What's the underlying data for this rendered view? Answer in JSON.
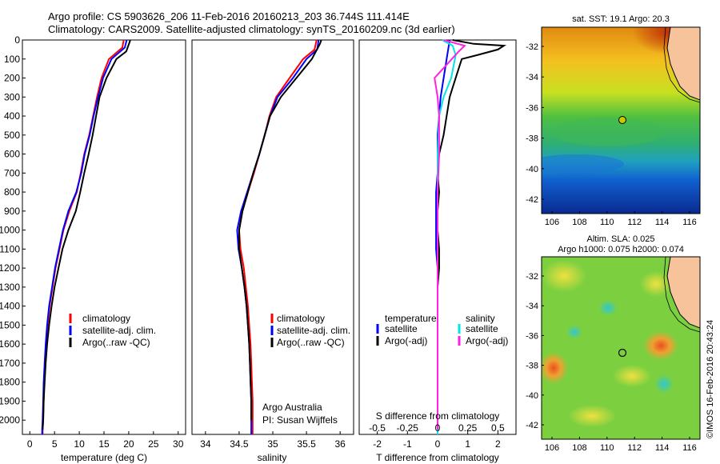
{
  "header": {
    "line1": "Argo profile: CS 5903626_206 11-Feb-2016 20160213_203 36.744S 111.414E",
    "line2": "Climatology: CARS2009. Satellite-adjusted climatology: synTS_20160209.nc (3d earlier)"
  },
  "colors": {
    "clim": "#ff0000",
    "sat": "#0000ff",
    "argo": "#000000",
    "sal_sat": "#00e5e5",
    "sal_argo": "#ff20e0"
  },
  "depth_axis": {
    "ylim": [
      2075,
      0
    ],
    "ticks": [
      0,
      100,
      200,
      300,
      400,
      500,
      600,
      700,
      800,
      900,
      1000,
      1100,
      1200,
      1300,
      1400,
      1500,
      1600,
      1700,
      1800,
      1900,
      2000
    ]
  },
  "panels": {
    "temperature": {
      "xlabel": "temperature (deg C)",
      "legend": [
        "climatology",
        "satellite-adj. clim.",
        "Argo(..raw -QC)"
      ]
    },
    "salinity": {
      "xlabel": "salinity",
      "legend": [
        "climatology",
        "satellite-adj. clim.",
        "Argo(..raw -QC)"
      ],
      "note1": "Argo Australia",
      "note2": "PI: Susan Wijffels"
    },
    "difference": {
      "xlabel": "T difference from climatology",
      "toplabel": "S difference from climatology",
      "legend_head_t": "temperature",
      "legend_head_s": "salinity",
      "legend": [
        "satellite",
        "Argo(-adj)",
        "satellite",
        "Argo(-adj)"
      ]
    }
  },
  "chart_data": [
    {
      "type": "line",
      "xlabel": "temperature (deg C)",
      "ylabel": "",
      "xlim": [
        -1.5,
        31.5
      ],
      "xticks": [
        0,
        5,
        10,
        15,
        20,
        25,
        30
      ],
      "ylim": [
        2075,
        0
      ],
      "series": [
        {
          "name": "climatology",
          "x": [
            19.0,
            18.7,
            16.0,
            14.5,
            13.6,
            12.8,
            12.0,
            11.0,
            10.3,
            9.5,
            8.0,
            6.8,
            6.0,
            5.2,
            4.6,
            4.0,
            3.6,
            3.3,
            3.1,
            2.9,
            2.8,
            2.7,
            2.6,
            2.6
          ],
          "y": [
            0,
            40,
            100,
            200,
            300,
            400,
            500,
            600,
            700,
            800,
            900,
            1000,
            1100,
            1200,
            1300,
            1400,
            1500,
            1600,
            1700,
            1800,
            1900,
            2000,
            2050,
            2075
          ]
        },
        {
          "name": "satellite-adj. clim.",
          "x": [
            19.6,
            19.2,
            16.5,
            14.8,
            13.8,
            12.9,
            12.1,
            11.1,
            10.4,
            9.4,
            7.8,
            6.7,
            5.9,
            5.1,
            4.5,
            3.9,
            3.5,
            3.2,
            3.0,
            2.8,
            2.7,
            2.6,
            2.5,
            2.5
          ],
          "y": [
            0,
            40,
            100,
            200,
            300,
            400,
            500,
            600,
            700,
            800,
            900,
            1000,
            1100,
            1200,
            1300,
            1400,
            1500,
            1600,
            1700,
            1800,
            1900,
            2000,
            2050,
            2075
          ]
        },
        {
          "name": "Argo(..raw -QC)",
          "x": [
            20.3,
            20.2,
            19.5,
            17.5,
            15.5,
            14.1,
            13.4,
            12.7,
            11.9,
            11.0,
            10.2,
            9.3,
            7.8,
            6.6,
            5.8,
            5.0,
            4.4,
            3.9,
            3.5,
            3.2,
            3.0,
            2.8,
            2.7,
            2.6
          ],
          "y": [
            0,
            10,
            60,
            100,
            200,
            300,
            400,
            500,
            600,
            700,
            800,
            900,
            1000,
            1100,
            1200,
            1300,
            1400,
            1500,
            1600,
            1700,
            1800,
            1900,
            2000,
            2050
          ]
        }
      ]
    },
    {
      "type": "line",
      "xlabel": "salinity",
      "xlim": [
        33.8,
        36.2
      ],
      "xticks": [
        34,
        34.5,
        35,
        35.5,
        36
      ],
      "ylim": [
        2075,
        0
      ],
      "series": [
        {
          "name": "climatology",
          "x": [
            35.65,
            35.62,
            35.45,
            35.25,
            35.05,
            34.95,
            34.88,
            34.8,
            34.72,
            34.63,
            34.55,
            34.5,
            34.52,
            34.57,
            34.6,
            34.63,
            34.65,
            34.67,
            34.68,
            34.69,
            34.7,
            34.7,
            34.7
          ],
          "y": [
            0,
            50,
            100,
            200,
            300,
            400,
            500,
            600,
            700,
            800,
            900,
            1000,
            1100,
            1200,
            1300,
            1400,
            1500,
            1600,
            1700,
            1800,
            1900,
            2000,
            2075
          ]
        },
        {
          "name": "satellite-adj. clim.",
          "x": [
            35.68,
            35.66,
            35.5,
            35.3,
            35.07,
            34.96,
            34.88,
            34.8,
            34.71,
            34.62,
            34.53,
            34.47,
            34.49,
            34.54,
            34.58,
            34.61,
            34.63,
            34.65,
            34.66,
            34.67,
            34.68,
            34.68,
            34.68
          ],
          "y": [
            0,
            50,
            100,
            200,
            300,
            400,
            500,
            600,
            700,
            800,
            900,
            1000,
            1100,
            1200,
            1300,
            1400,
            1500,
            1600,
            1700,
            1800,
            1900,
            2000,
            2075
          ]
        },
        {
          "name": "Argo(..raw -QC)",
          "x": [
            35.72,
            35.7,
            35.58,
            35.35,
            35.12,
            34.96,
            34.88,
            34.8,
            34.71,
            34.63,
            34.55,
            34.5,
            34.5,
            34.54,
            34.58,
            34.61,
            34.63,
            34.65,
            34.66,
            34.67,
            34.68,
            34.68
          ],
          "y": [
            0,
            20,
            100,
            200,
            300,
            400,
            500,
            600,
            700,
            800,
            900,
            1000,
            1100,
            1200,
            1300,
            1400,
            1500,
            1600,
            1700,
            1800,
            1900,
            2000
          ]
        }
      ]
    },
    {
      "type": "line",
      "xlabel": "T difference from climatology",
      "xlim": [
        -2.6,
        2.6
      ],
      "xticks": [
        -2,
        -1,
        0,
        1,
        2
      ],
      "top_xlabel": "S difference from climatology",
      "top_xticks": [
        "-0.5",
        "-0.25",
        "0",
        "0.25",
        "0.5"
      ],
      "ylim": [
        2075,
        0
      ],
      "series": [
        {
          "name": "satellite",
          "x": [
            0.4,
            0.3,
            0.1,
            0.0,
            0.0,
            -0.05,
            -0.05,
            -0.05,
            -0.05,
            0.0,
            0.0,
            0.0,
            0.0,
            0.0,
            0.0,
            0.0,
            0.0,
            0.0,
            0.0,
            0.0,
            0.0
          ],
          "y": [
            0,
            100,
            300,
            500,
            700,
            800,
            900,
            1000,
            1100,
            1200,
            1300,
            1400,
            1500,
            1600,
            1700,
            1800,
            1900,
            2000,
            2050,
            2075,
            2075
          ]
        },
        {
          "name": "Argo(-adj)",
          "x": [
            0.5,
            1.2,
            2.2,
            2.0,
            1.3,
            0.8,
            0.7,
            0.5,
            0.4,
            0.3,
            0.2,
            0.05,
            0.0,
            0.05,
            0.0,
            0.0,
            0.05,
            0.05,
            0.0,
            0.0,
            0.0,
            0.0,
            0.0,
            0.0
          ],
          "y": [
            0,
            20,
            30,
            50,
            80,
            100,
            150,
            250,
            300,
            400,
            500,
            600,
            700,
            800,
            900,
            1000,
            1100,
            1200,
            1300,
            1400,
            1500,
            1700,
            1900,
            2050
          ]
        },
        {
          "name": "satellite",
          "x": [
            0.15,
            0.5,
            0.6,
            0.45,
            0.2,
            0.05,
            0.0,
            0.0,
            0.0,
            0.0,
            0.0,
            0.0
          ],
          "y": [
            0,
            30,
            80,
            200,
            300,
            400,
            600,
            800,
            1000,
            1400,
            1800,
            2075
          ]
        },
        {
          "name": "Argo(-adj)",
          "x": [
            0.2,
            0.9,
            0.7,
            -0.1,
            0.0,
            0.05,
            0.05,
            0.0,
            0.0,
            0.0,
            0.0,
            0.0
          ],
          "y": [
            0,
            30,
            60,
            200,
            300,
            400,
            600,
            800,
            1000,
            1300,
            1700,
            2050
          ]
        }
      ]
    },
    {
      "type": "heatmap",
      "title": "sat. SST: 19.1  Argo: 20.3",
      "xticks": [
        "106",
        "108",
        "110",
        "112",
        "114",
        "116"
      ],
      "yticks": [
        "-32",
        "-34",
        "-36",
        "-38",
        "-40",
        "-42"
      ],
      "marker": {
        "lon": 111.414,
        "lat": -36.744
      }
    },
    {
      "type": "heatmap",
      "title": "Altim. SLA: 0.025",
      "subtitle": "Argo h1000: 0.075 h2000: 0.074",
      "xticks": [
        "106",
        "108",
        "110",
        "112",
        "114",
        "116"
      ],
      "yticks": [
        "-32",
        "-34",
        "-36",
        "-38",
        "-40",
        "-42"
      ],
      "marker": {
        "lon": 111.414,
        "lat": -36.744
      }
    }
  ],
  "footer": {
    "stamp": "©IMOS 16-Feb-2016 20:43:24"
  }
}
